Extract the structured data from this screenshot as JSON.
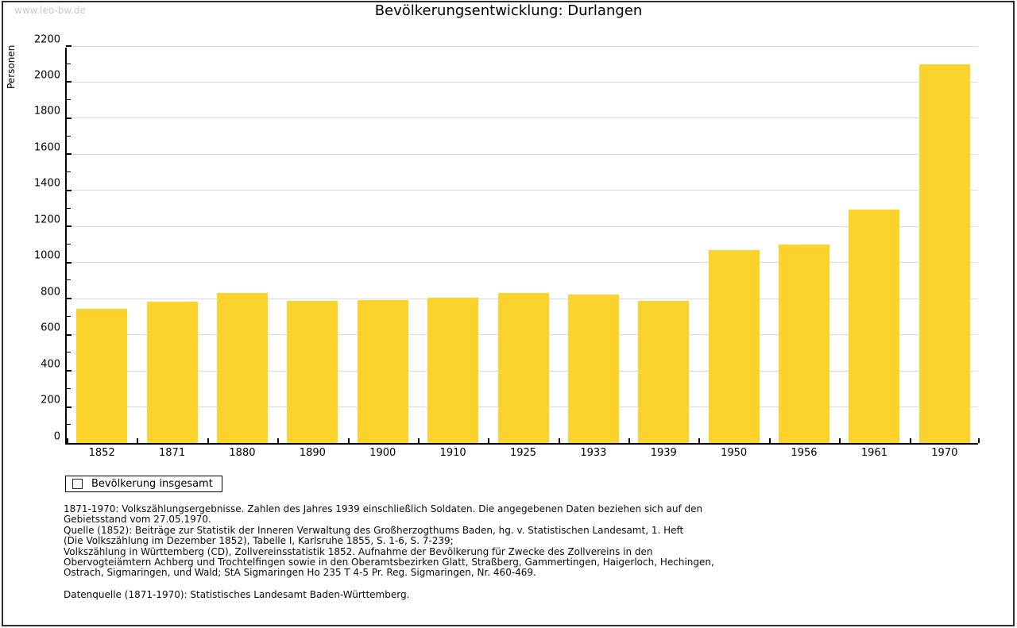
{
  "watermark": "www.leo-bw.de",
  "title": "Bevölkerungsentwicklung: Durlangen",
  "colors": {
    "bar": "#fcd32d",
    "grid": "#dcdcdc",
    "axis": "#000000",
    "watermark": "#c9c9c9"
  },
  "chart_data": {
    "type": "bar",
    "title": "Bevölkerungsentwicklung: Durlangen",
    "categories": [
      "1852",
      "1871",
      "1880",
      "1890",
      "1900",
      "1910",
      "1925",
      "1933",
      "1939",
      "1950",
      "1956",
      "1961",
      "1970"
    ],
    "values": [
      745,
      782,
      830,
      786,
      791,
      806,
      830,
      825,
      786,
      1071,
      1102,
      1295,
      2100
    ],
    "series_name": "Bevölkerung insgesamt",
    "xlabel": "",
    "ylabel": "Personen",
    "ylim": [
      0,
      2200
    ],
    "ytick_step": 200,
    "yminor_step": 100,
    "grid": true,
    "legend_position": "bottom-left"
  },
  "legend": {
    "label": "Bevölkerung insgesamt"
  },
  "footnotes": {
    "lines": [
      "1871-1970: Volkszählungsergebnisse. Zahlen des Jahres 1939 einschließlich Soldaten. Die angegebenen Daten beziehen sich auf den",
      "Gebietsstand vom 27.05.1970.",
      "Quelle (1852): Beiträge zur Statistik der Inneren Verwaltung des Großherzogthums Baden, hg. v. Statistischen Landesamt, 1. Heft",
      "(Die Volkszählung im Dezember 1852), Tabelle I, Karlsruhe 1855, S. 1-6, S. 7-239;",
      "Volkszählung in Württemberg (CD), Zollvereinsstatistik 1852. Aufnahme der Bevölkerung für Zwecke des Zollvereins in den",
      "Obervogteiämtern Achberg und Trochtelfingen sowie in den Oberamtsbezirken Glatt, Straßberg, Gammertingen, Haigerloch, Hechingen,",
      "Ostrach, Sigmaringen, und Wald; StA Sigmaringen Ho 235 T 4-5 Pr. Reg. Sigmaringen, Nr. 460-469."
    ],
    "datasource": "Datenquelle (1871-1970): Statistisches Landesamt Baden-Württemberg."
  }
}
